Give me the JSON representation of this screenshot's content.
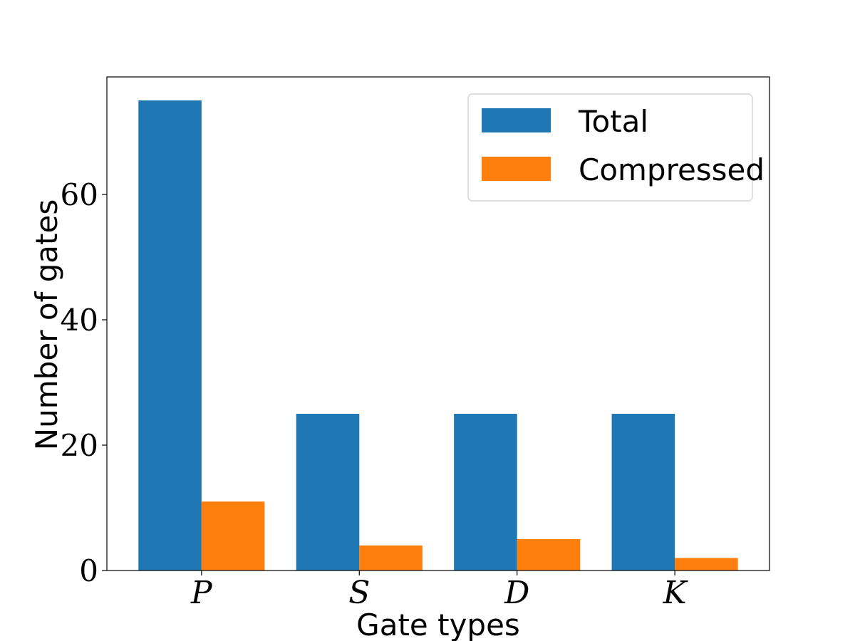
{
  "chart_data": {
    "type": "bar",
    "categories": [
      "P",
      "S",
      "D",
      "K"
    ],
    "series": [
      {
        "name": "Total",
        "values": [
          75,
          25,
          25,
          25
        ],
        "color": "#1f77b4"
      },
      {
        "name": "Compressed",
        "values": [
          11,
          4,
          5,
          2
        ],
        "color": "#ff7f0e"
      }
    ],
    "xlabel": "Gate types",
    "ylabel": "Number of gates",
    "ylim": [
      0,
      78.75
    ],
    "yticks": [
      0,
      20,
      40,
      60
    ],
    "grid": false,
    "legend": "top-right"
  }
}
